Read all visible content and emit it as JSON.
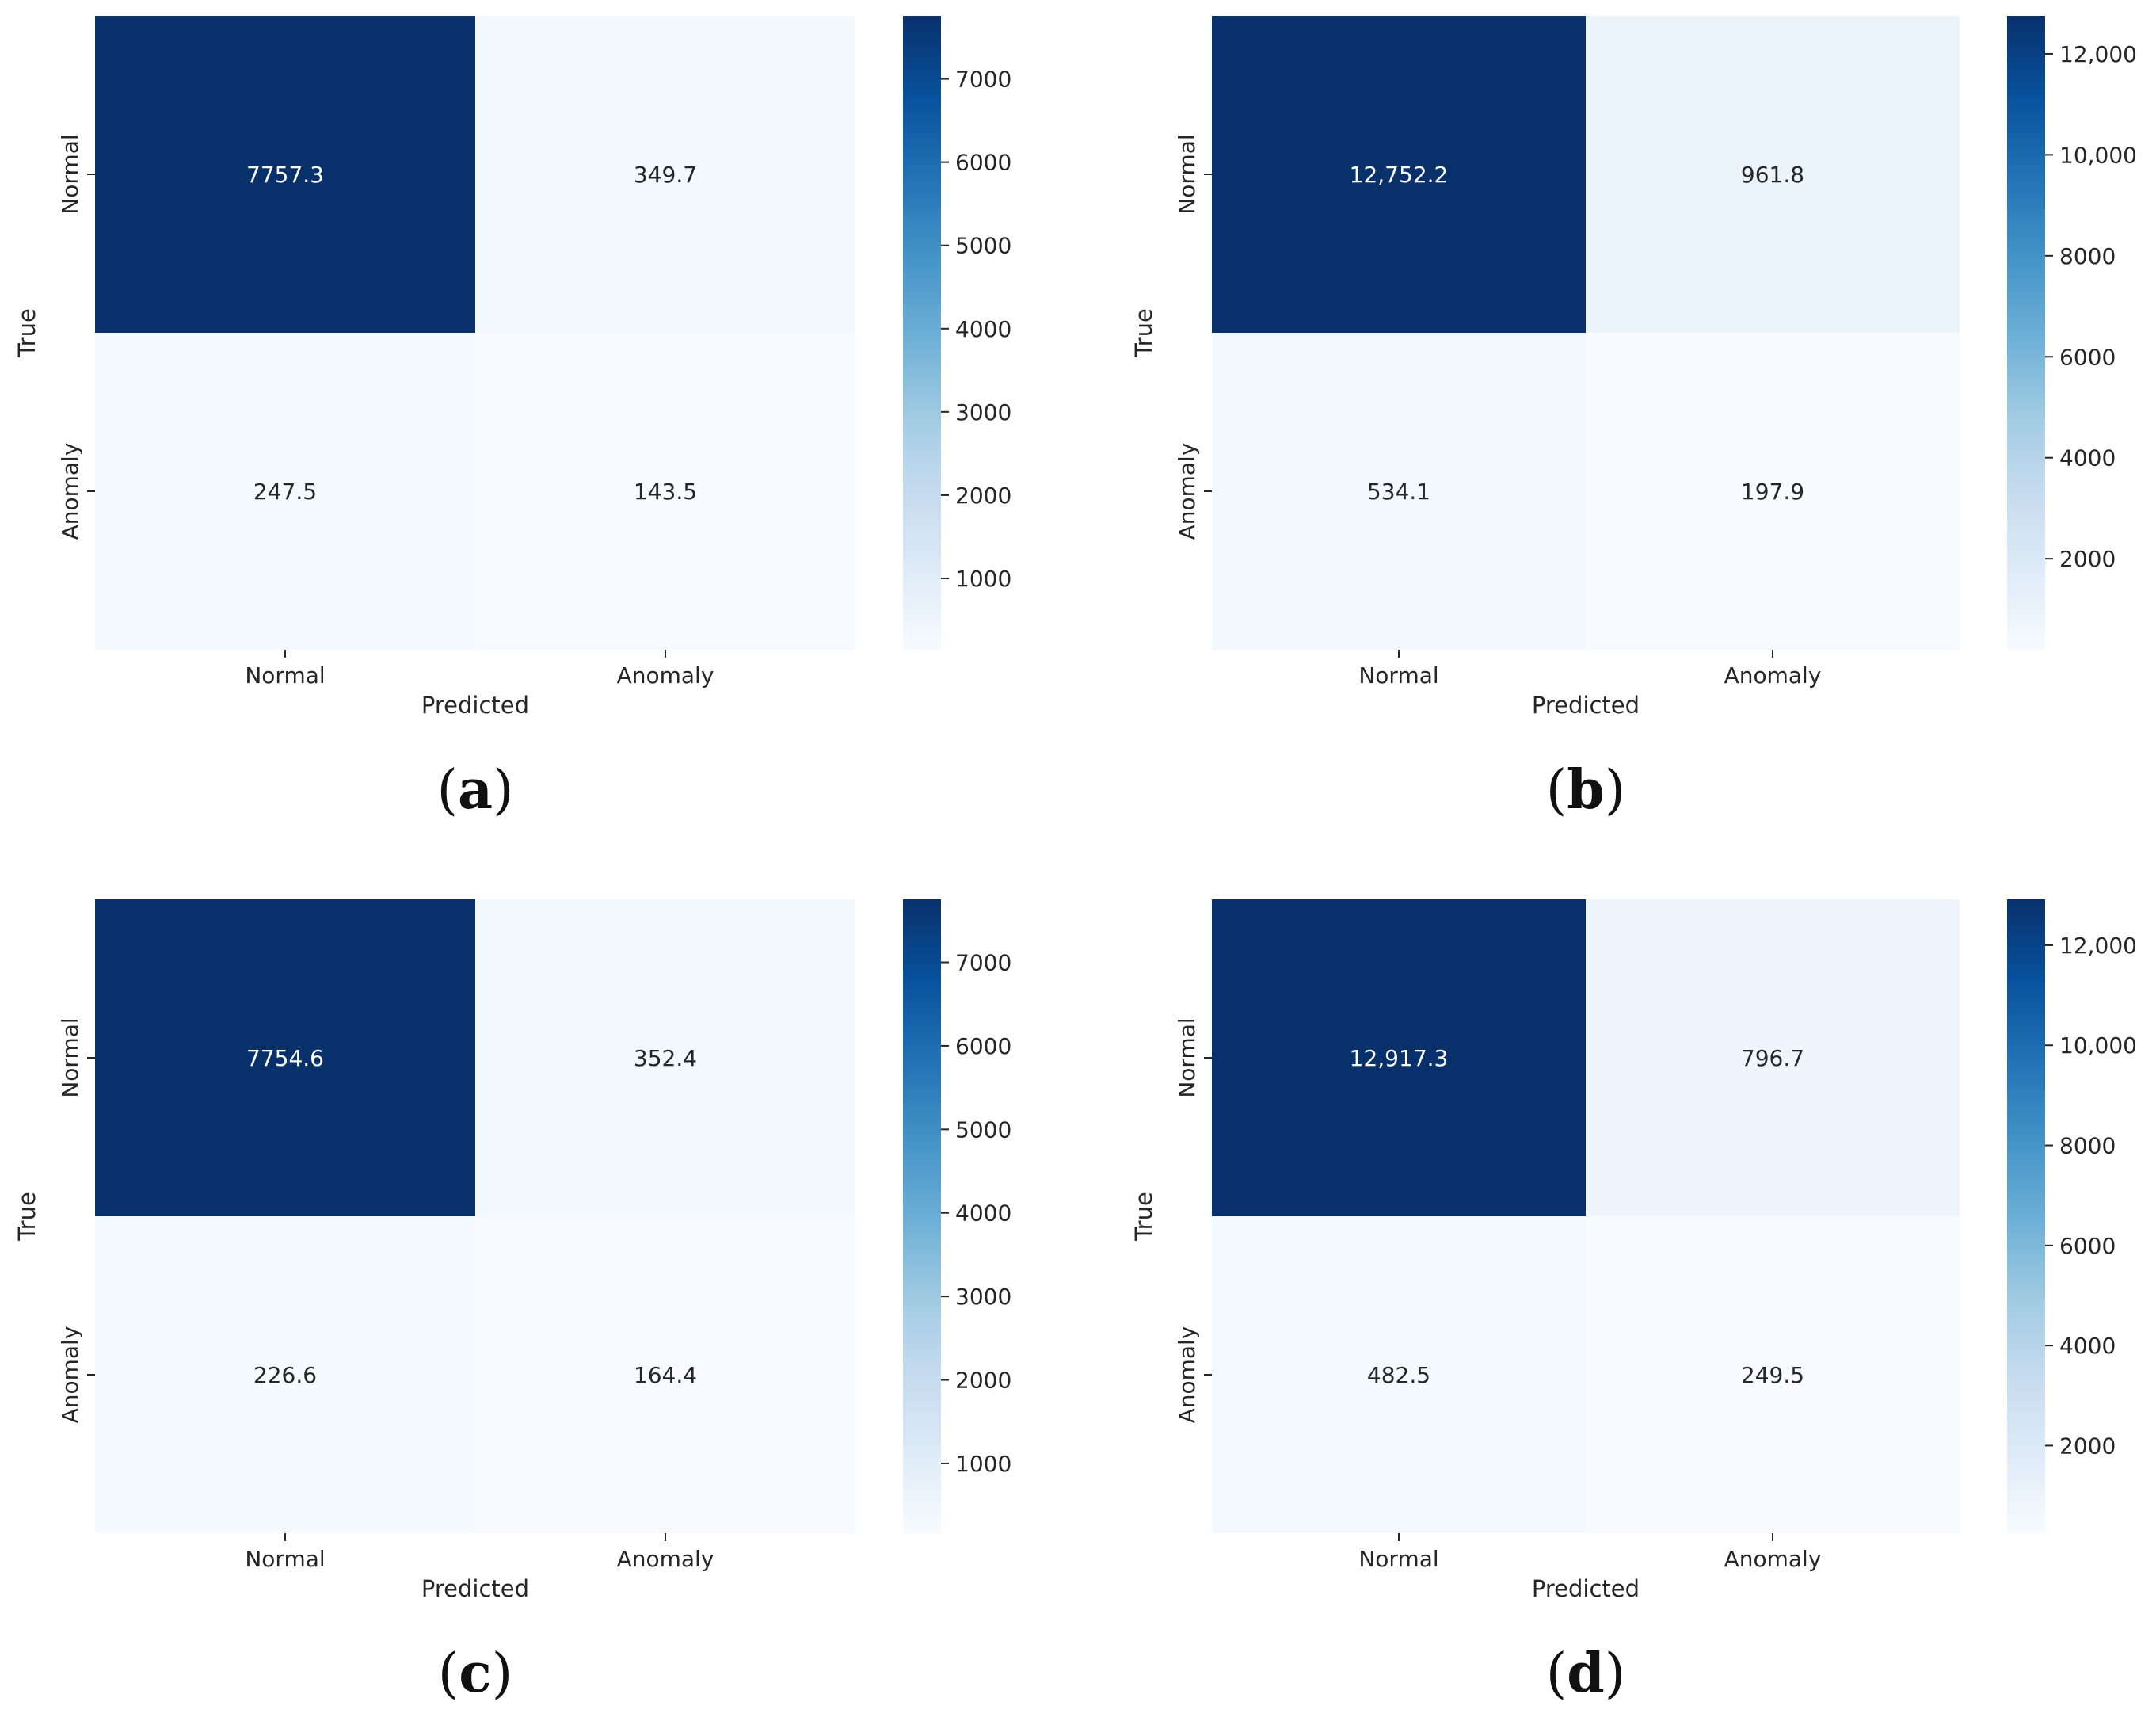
{
  "chart_data": [
    {
      "type": "heatmap",
      "caption_letter": "a",
      "x_categories": [
        "Normal",
        "Anomaly"
      ],
      "y_categories": [
        "Normal",
        "Anomaly"
      ],
      "values": [
        [
          7757.3,
          349.7
        ],
        [
          247.5,
          143.5
        ]
      ],
      "value_labels": [
        [
          "7757.3",
          "349.7"
        ],
        [
          "247.5",
          "143.5"
        ]
      ],
      "xlabel": "Predicted",
      "ylabel": "True",
      "colorbar": {
        "min": 143.5,
        "max": 7757.3,
        "ticks": [
          1000,
          2000,
          3000,
          4000,
          5000,
          6000,
          7000
        ],
        "tick_labels": [
          "1000",
          "2000",
          "3000",
          "4000",
          "5000",
          "6000",
          "7000"
        ]
      },
      "colormap": "Blues"
    },
    {
      "type": "heatmap",
      "caption_letter": "b",
      "x_categories": [
        "Normal",
        "Anomaly"
      ],
      "y_categories": [
        "Normal",
        "Anomaly"
      ],
      "values": [
        [
          12752.2,
          961.8
        ],
        [
          534.1,
          197.9
        ]
      ],
      "value_labels": [
        [
          "12,752.2",
          "961.8"
        ],
        [
          "534.1",
          "197.9"
        ]
      ],
      "xlabel": "Predicted",
      "ylabel": "True",
      "colorbar": {
        "min": 197.9,
        "max": 12752.2,
        "ticks": [
          2000,
          4000,
          6000,
          8000,
          10000,
          12000
        ],
        "tick_labels": [
          "2000",
          "4000",
          "6000",
          "8000",
          "10,000",
          "12,000"
        ]
      },
      "colormap": "Blues"
    },
    {
      "type": "heatmap",
      "caption_letter": "c",
      "x_categories": [
        "Normal",
        "Anomaly"
      ],
      "y_categories": [
        "Normal",
        "Anomaly"
      ],
      "values": [
        [
          7754.6,
          352.4
        ],
        [
          226.6,
          164.4
        ]
      ],
      "value_labels": [
        [
          "7754.6",
          "352.4"
        ],
        [
          "226.6",
          "164.4"
        ]
      ],
      "xlabel": "Predicted",
      "ylabel": "True",
      "colorbar": {
        "min": 164.4,
        "max": 7754.6,
        "ticks": [
          1000,
          2000,
          3000,
          4000,
          5000,
          6000,
          7000
        ],
        "tick_labels": [
          "1000",
          "2000",
          "3000",
          "4000",
          "5000",
          "6000",
          "7000"
        ]
      },
      "colormap": "Blues"
    },
    {
      "type": "heatmap",
      "caption_letter": "d",
      "x_categories": [
        "Normal",
        "Anomaly"
      ],
      "y_categories": [
        "Normal",
        "Anomaly"
      ],
      "values": [
        [
          12917.3,
          796.7
        ],
        [
          482.5,
          249.5
        ]
      ],
      "value_labels": [
        [
          "12,917.3",
          "796.7"
        ],
        [
          "482.5",
          "249.5"
        ]
      ],
      "xlabel": "Predicted",
      "ylabel": "True",
      "colorbar": {
        "min": 249.5,
        "max": 12917.3,
        "ticks": [
          2000,
          4000,
          6000,
          8000,
          10000,
          12000
        ],
        "tick_labels": [
          "2000",
          "4000",
          "6000",
          "8000",
          "10,000",
          "12,000"
        ]
      },
      "colormap": "Blues"
    }
  ]
}
